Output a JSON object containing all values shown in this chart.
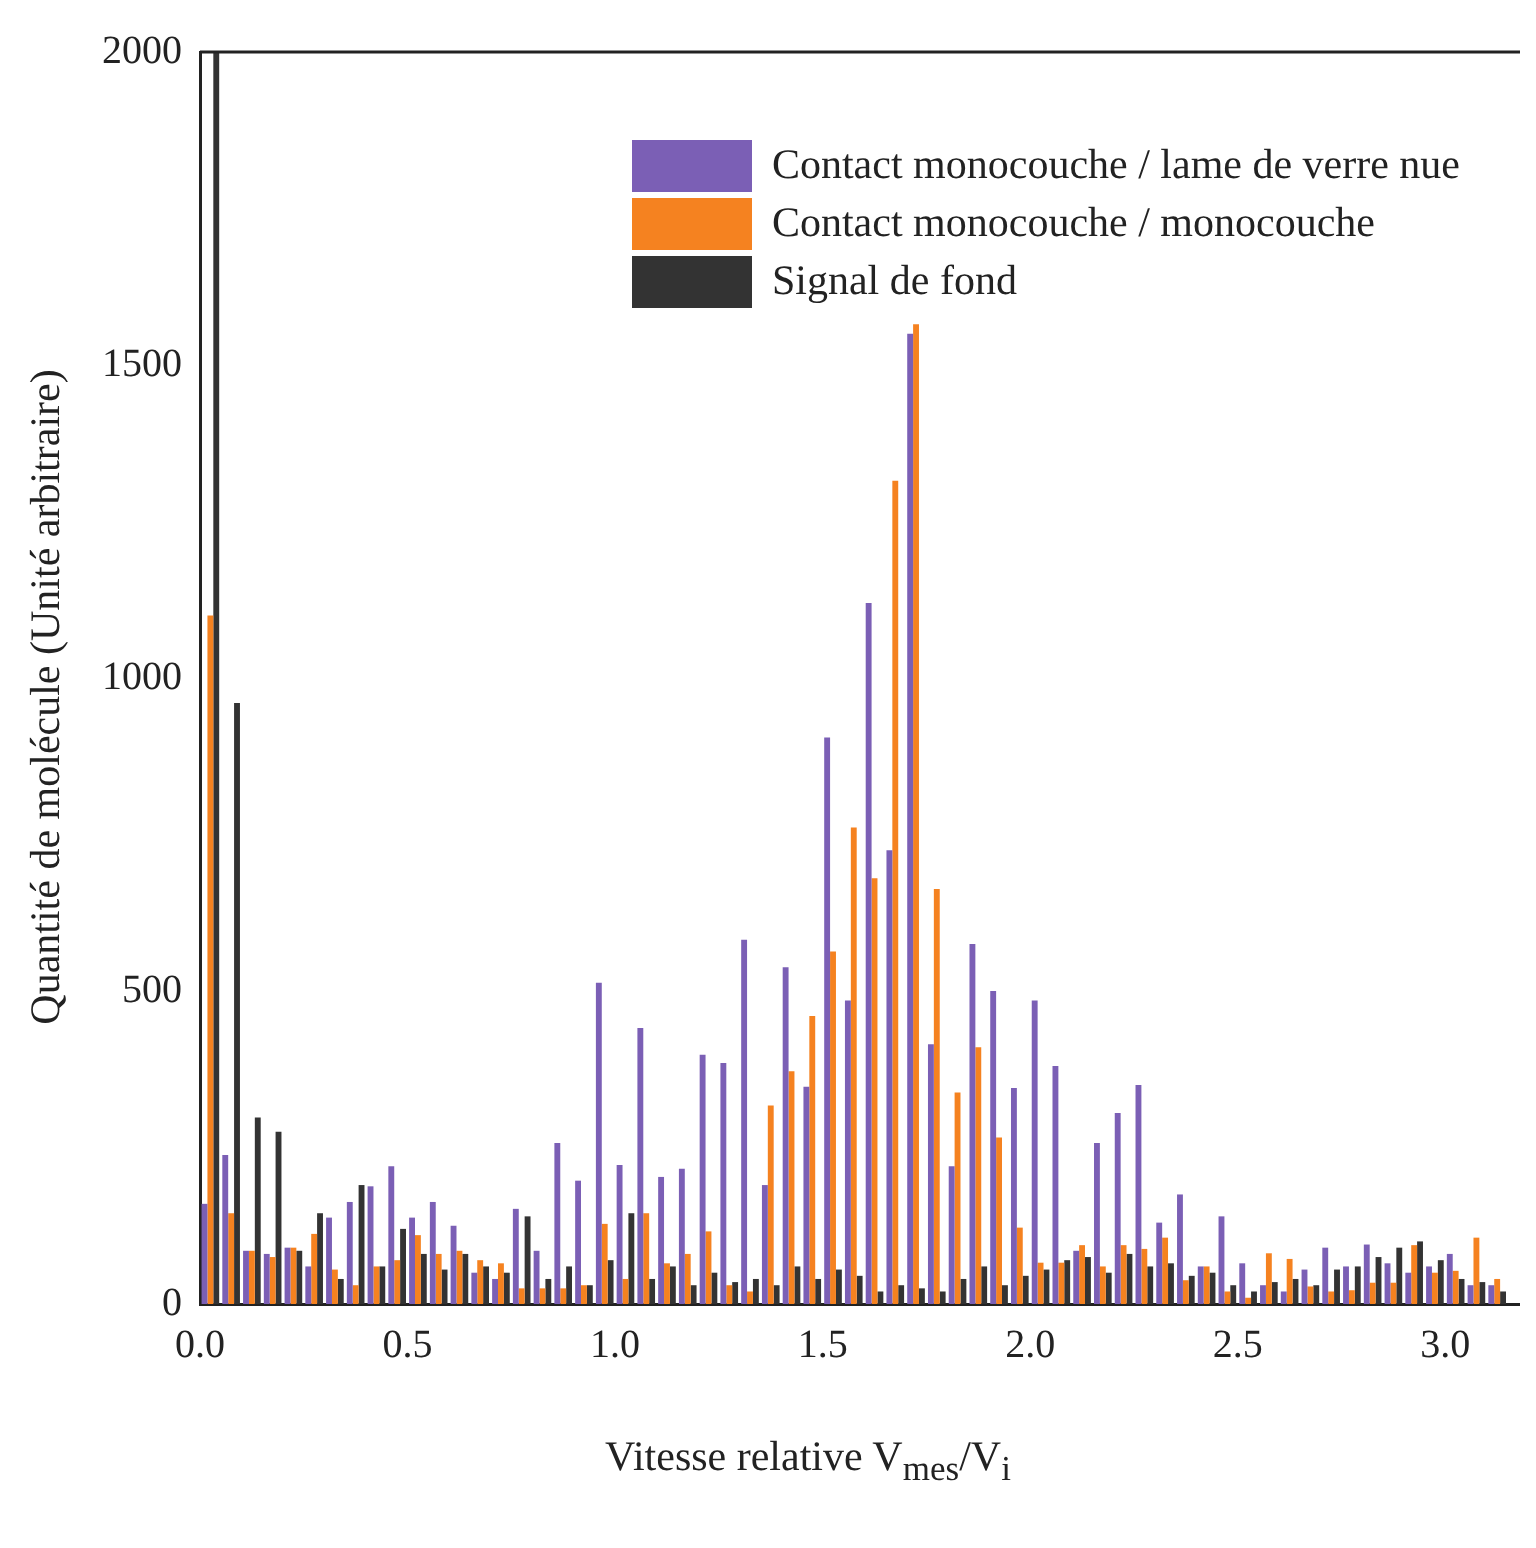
{
  "chart_data": {
    "type": "histogram",
    "xlabel": "Vitesse relative V$_{mes}$/V$_{i}$",
    "ylabel": "Quantité de molécule (Unité arbitraire)",
    "bins": [
      0,
      0.05,
      0.1,
      0.15,
      0.2,
      0.25,
      0.3,
      0.35,
      0.4,
      0.45,
      0.5,
      0.55,
      0.6,
      0.65,
      0.7,
      0.75,
      0.8,
      0.85,
      0.9,
      0.95,
      1.0,
      1.05,
      1.1,
      1.15,
      1.2,
      1.25,
      1.3,
      1.35,
      1.4,
      1.45,
      1.5,
      1.55,
      1.6,
      1.65,
      1.7,
      1.75,
      1.8,
      1.85,
      1.9,
      1.95,
      2.0,
      2.05,
      2.1,
      2.15,
      2.2,
      2.25,
      2.3,
      2.35,
      2.4,
      2.45,
      2.5,
      2.55,
      2.6,
      2.65,
      2.7,
      2.75,
      2.8,
      2.85,
      2.9,
      2.95,
      3.0,
      3.05,
      3.1,
      3.15
    ],
    "series": [
      {
        "name": "Contact monocouche / lame de verre nue",
        "color": "#7b5fb5",
        "values": [
          160,
          238,
          85,
          80,
          90,
          60,
          138,
          163,
          188,
          220,
          138,
          163,
          125,
          50,
          40,
          152,
          85,
          257,
          197,
          513,
          222,
          441,
          203,
          216,
          398,
          385,
          582,
          190,
          538,
          347,
          905,
          485,
          1120,
          725,
          1550,
          415,
          220,
          575,
          500,
          345,
          485,
          380,
          85,
          257,
          305,
          350,
          130,
          175,
          60,
          140,
          65,
          30,
          20,
          55,
          90,
          60,
          95,
          65,
          50,
          60,
          80,
          30,
          30
        ]
      },
      {
        "name": "Contact monocouche / monocouche",
        "color": "#f58220",
        "values": [
          1100,
          145,
          85,
          75,
          90,
          112,
          55,
          30,
          60,
          70,
          110,
          80,
          85,
          70,
          65,
          25,
          25,
          25,
          30,
          128,
          40,
          145,
          65,
          80,
          116,
          30,
          20,
          317,
          372,
          460,
          563,
          761,
          680,
          1315,
          1565,
          663,
          338,
          410,
          266,
          122,
          66,
          66,
          94,
          60,
          94,
          88,
          106,
          38,
          60,
          20,
          10,
          81,
          72,
          28,
          20,
          22,
          34,
          34,
          94,
          50,
          53,
          106,
          40
        ]
      },
      {
        "name": "Signal de fond",
        "color": "#333333",
        "values": [
          2000,
          960,
          298,
          275,
          85,
          145,
          40,
          190,
          60,
          120,
          80,
          55,
          80,
          60,
          50,
          140,
          40,
          60,
          30,
          70,
          145,
          40,
          60,
          30,
          50,
          35,
          40,
          30,
          60,
          40,
          55,
          45,
          20,
          30,
          25,
          20,
          40,
          60,
          30,
          45,
          55,
          70,
          75,
          50,
          80,
          60,
          65,
          45,
          50,
          30,
          20,
          35,
          40,
          30,
          55,
          60,
          75,
          90,
          100,
          70,
          40,
          35,
          20
        ]
      }
    ],
    "xlim": [
      0,
      3.18
    ],
    "xticks": [
      {
        "value": 0,
        "label": "0.0"
      },
      {
        "value": 0.5,
        "label": "0.5"
      },
      {
        "value": 1,
        "label": "1.0"
      },
      {
        "value": 1.5,
        "label": "1.5"
      },
      {
        "value": 2,
        "label": "2.0"
      },
      {
        "value": 2.5,
        "label": "2.5"
      },
      {
        "value": 3,
        "label": "3.0"
      }
    ],
    "ylim": [
      0,
      2000
    ],
    "yticks": [
      0,
      500,
      1000,
      1500,
      2000
    ],
    "grid": false,
    "legend": "top right"
  }
}
